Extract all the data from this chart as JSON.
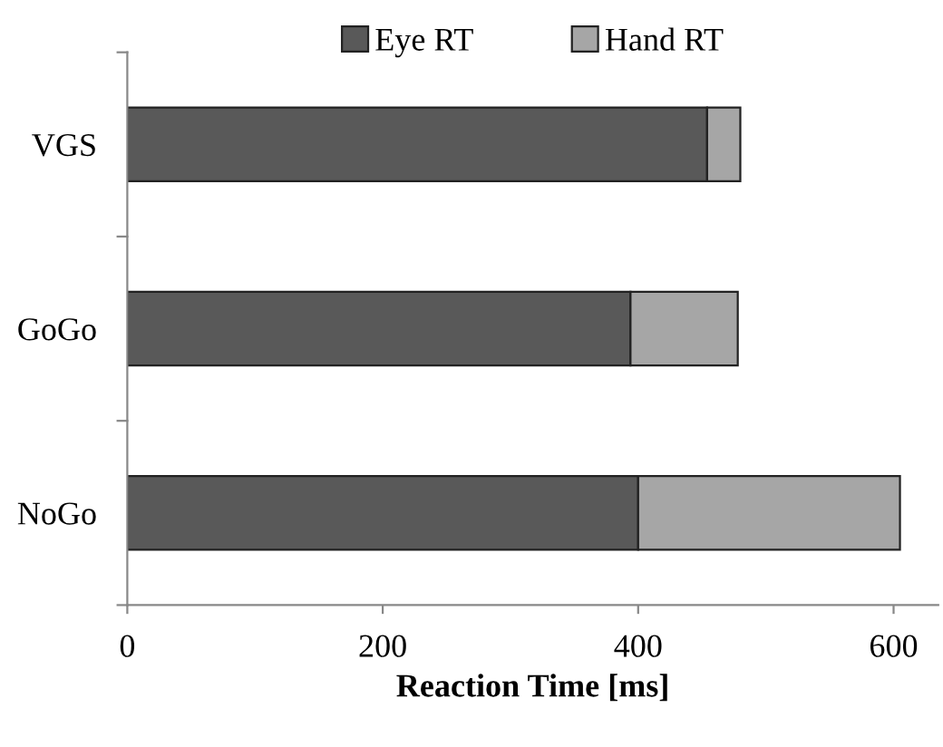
{
  "chart_data": {
    "type": "bar",
    "orientation": "horizontal",
    "stacked": true,
    "xlabel": "Reaction Time [ms]",
    "categories": [
      "VGS",
      "GoGo",
      "NoGo"
    ],
    "series": [
      {
        "name": "Eye RT",
        "color": "#595959",
        "values": [
          454,
          394,
          400
        ]
      },
      {
        "name": "Hand RT",
        "color": "#a6a6a6",
        "values": [
          26,
          84,
          205
        ]
      }
    ],
    "xlim": [
      0,
      635
    ],
    "xticks": [
      0,
      200,
      400,
      600
    ],
    "grid": false,
    "legend": "top"
  }
}
